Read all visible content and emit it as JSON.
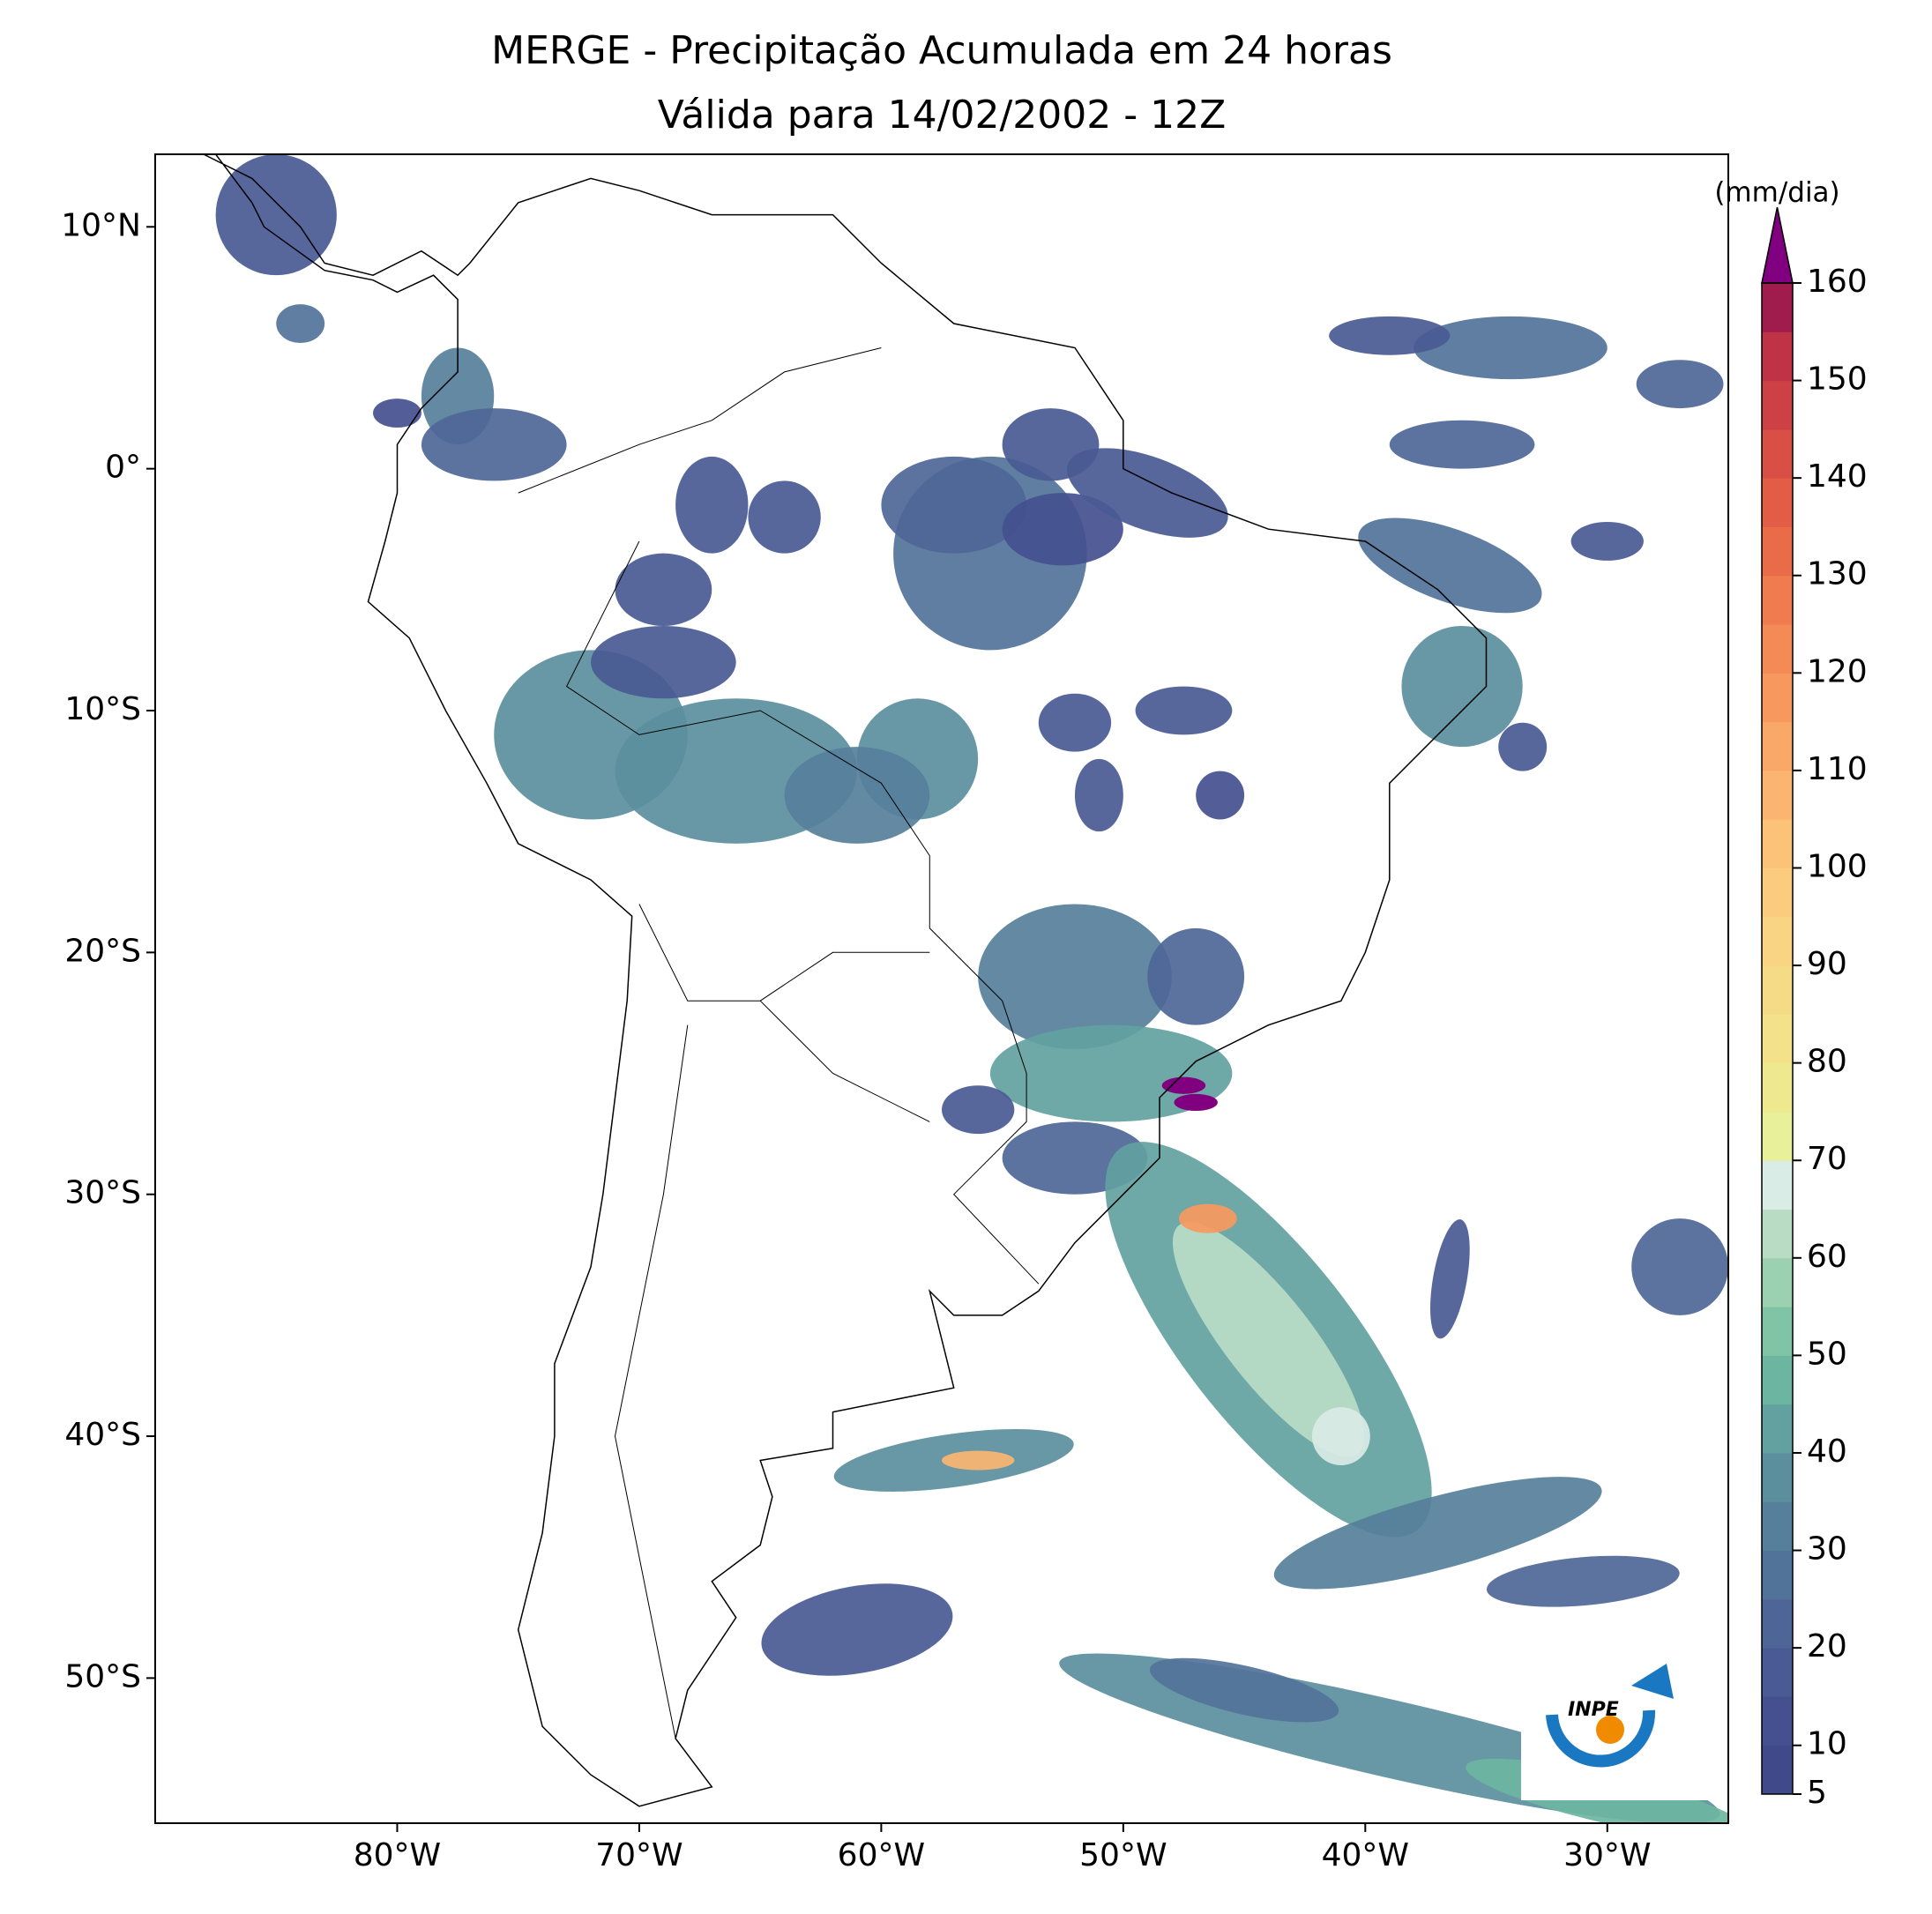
{
  "chart_data": {
    "type": "map",
    "title": "MERGE - Precipitação Acumulada em 24 horas",
    "subtitle": "Válida para 14/02/2002 - 12Z",
    "xlim": [
      -90,
      -25
    ],
    "ylim": [
      -56,
      13
    ],
    "xticks": [
      {
        "value": -80,
        "label": "80°W"
      },
      {
        "value": -70,
        "label": "70°W"
      },
      {
        "value": -60,
        "label": "60°W"
      },
      {
        "value": -50,
        "label": "50°W"
      },
      {
        "value": -40,
        "label": "40°W"
      },
      {
        "value": -30,
        "label": "30°W"
      }
    ],
    "yticks": [
      {
        "value": 10,
        "label": "10°N"
      },
      {
        "value": 0,
        "label": "0°"
      },
      {
        "value": -10,
        "label": "10°S"
      },
      {
        "value": -20,
        "label": "20°S"
      },
      {
        "value": -30,
        "label": "30°S"
      },
      {
        "value": -40,
        "label": "40°S"
      },
      {
        "value": -50,
        "label": "50°S"
      }
    ],
    "colorbar": {
      "label": "(mm/dia)",
      "clim": [
        5,
        160
      ],
      "ticks": [
        5,
        10,
        20,
        30,
        40,
        50,
        60,
        70,
        80,
        90,
        100,
        110,
        120,
        130,
        140,
        150,
        160
      ],
      "colors": [
        "#3f4a8a",
        "#44508f",
        "#495a94",
        "#4e6697",
        "#527399",
        "#567f9b",
        "#5b8f9d",
        "#62a19f",
        "#6cb6a1",
        "#7fc4a4",
        "#9bd0b0",
        "#b9dcc5",
        "#d9ece6",
        "#e8f09a",
        "#eee88e",
        "#f3e28a",
        "#f6db86",
        "#f9d482",
        "#fbcc7e",
        "#fcc278",
        "#fbb571",
        "#f9a868",
        "#f7995e",
        "#f48a55",
        "#f07b4e",
        "#ea6b48",
        "#e35c45",
        "#d94e45",
        "#cd4045",
        "#c03346",
        "#a01c4c"
      ],
      "extend_color": "#800080"
    },
    "logo": "INPE"
  }
}
